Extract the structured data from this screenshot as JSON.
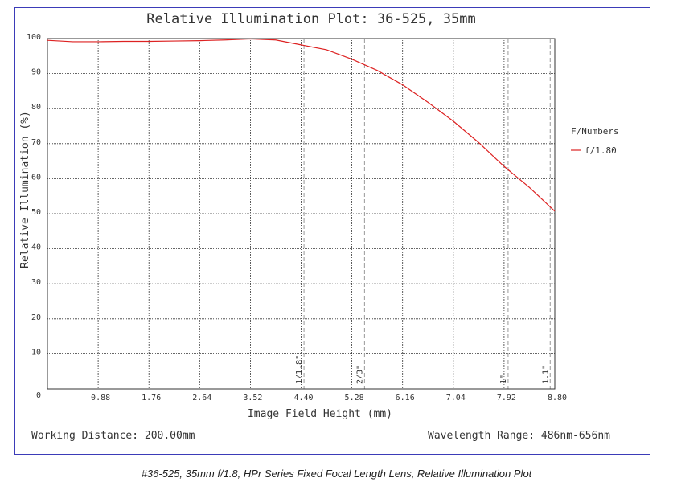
{
  "chart_data": {
    "type": "line",
    "title": "Relative Illumination Plot: 36-525, 35mm",
    "xlabel": "Image Field Height (mm)",
    "ylabel": "Relative Illumination (%)",
    "xlim": [
      0,
      8.8
    ],
    "ylim": [
      0,
      100
    ],
    "x_ticks": [
      "0.88",
      "1.76",
      "2.64",
      "3.52",
      "4.40",
      "5.28",
      "6.16",
      "7.04",
      "7.92",
      "8.80"
    ],
    "y_ticks": [
      "0",
      "10",
      "20",
      "30",
      "40",
      "50",
      "60",
      "70",
      "80",
      "90",
      "100"
    ],
    "grid": true,
    "legend": {
      "title": "F/Numbers",
      "placement": "right"
    },
    "series": [
      {
        "name": "f/1.80",
        "color": "#dd2222",
        "x": [
          0,
          0.44,
          0.88,
          1.32,
          1.76,
          2.2,
          2.64,
          3.08,
          3.52,
          3.96,
          4.4,
          4.84,
          5.28,
          5.72,
          6.16,
          6.6,
          7.04,
          7.48,
          7.92,
          8.36,
          8.8
        ],
        "y": [
          99.5,
          99.1,
          99.1,
          99.2,
          99.2,
          99.3,
          99.4,
          99.6,
          99.9,
          99.6,
          98.2,
          96.8,
          94.1,
          90.9,
          86.8,
          81.8,
          76.4,
          70.3,
          63.5,
          57.5,
          50.7
        ]
      }
    ],
    "sensor_markers": [
      {
        "label": "1/1.8\"",
        "x": 4.45
      },
      {
        "label": "2/3\"",
        "x": 5.5
      },
      {
        "label": "1\"",
        "x": 7.99
      },
      {
        "label": "1.1\"",
        "x": 8.72
      }
    ]
  },
  "footer": {
    "working_distance": "Working Distance: 200.00mm",
    "wavelength_range": "Wavelength Range: 486nm-656nm"
  },
  "caption": "#36-525, 35mm f/1.8, HPr Series Fixed Focal Length Lens, Relative Illumination Plot"
}
